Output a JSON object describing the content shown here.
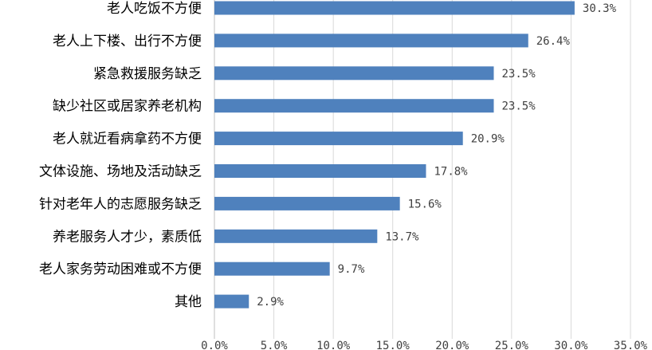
{
  "chart_data": {
    "type": "bar",
    "orientation": "horizontal",
    "categories": [
      "老人吃饭不方便",
      "老人上下楼、出行不方便",
      "紧急救援服务缺乏",
      "缺少社区或居家养老机构",
      "老人就近看病拿药不方便",
      "文体设施、场地及活动缺乏",
      "针对老年人的志愿服务缺乏",
      "养老服务人才少，素质低",
      "老人家务劳动困难或不方便",
      "其他"
    ],
    "values": [
      30.3,
      26.4,
      23.5,
      23.5,
      20.9,
      17.8,
      15.6,
      13.7,
      9.7,
      2.9
    ],
    "value_labels": [
      "30.3%",
      "26.4%",
      "23.5%",
      "23.5%",
      "20.9%",
      "17.8%",
      "15.6%",
      "13.7%",
      "9.7%",
      "2.9%"
    ],
    "x_ticks": [
      "0.0%",
      "5.0%",
      "10.0%",
      "15.0%",
      "20.0%",
      "25.0%",
      "30.0%",
      "35.0%"
    ],
    "xlim": [
      0,
      35
    ],
    "grid": "vertical",
    "bar_color": "#4f81bd",
    "title": "",
    "xlabel": "",
    "ylabel": ""
  }
}
